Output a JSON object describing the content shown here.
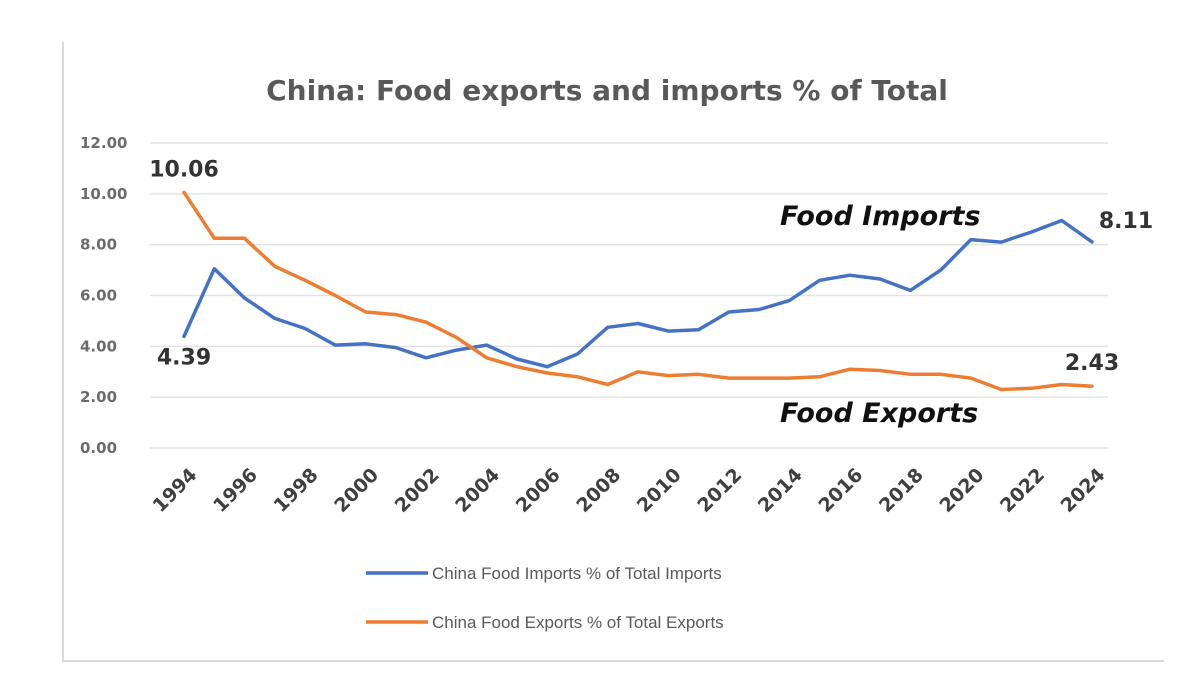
{
  "chart_data": {
    "type": "line",
    "title": "China: Food exports and imports % of Total",
    "xlabel": "",
    "ylabel": "",
    "ylim": [
      0,
      12
    ],
    "yticks": [
      "0.00",
      "2.00",
      "4.00",
      "6.00",
      "8.00",
      "10.00",
      "12.00"
    ],
    "x": [
      1994,
      1995,
      1996,
      1997,
      1998,
      1999,
      2000,
      2001,
      2002,
      2003,
      2004,
      2005,
      2006,
      2007,
      2008,
      2009,
      2010,
      2011,
      2012,
      2013,
      2014,
      2015,
      2016,
      2017,
      2018,
      2019,
      2020,
      2021,
      2022,
      2023,
      2024
    ],
    "xticks": [
      "1994",
      "1996",
      "1998",
      "2000",
      "2002",
      "2004",
      "2006",
      "2008",
      "2010",
      "2012",
      "2014",
      "2016",
      "2018",
      "2020",
      "2022",
      "2024"
    ],
    "grid": true,
    "legend_position": "bottom",
    "series": [
      {
        "name": "China Food Imports % of Total Imports",
        "color": "#4472c4",
        "values": [
          4.39,
          7.05,
          5.9,
          5.1,
          4.7,
          4.05,
          4.1,
          3.95,
          3.55,
          3.85,
          4.05,
          3.5,
          3.2,
          3.7,
          4.75,
          4.9,
          4.6,
          4.65,
          5.35,
          5.45,
          5.8,
          6.6,
          6.8,
          6.65,
          6.2,
          7.0,
          8.2,
          8.1,
          8.5,
          8.95,
          8.11
        ]
      },
      {
        "name": "China Food Exports % of Total Exports",
        "color": "#ed7d31",
        "values": [
          10.06,
          8.25,
          8.25,
          7.15,
          6.6,
          6.0,
          5.35,
          5.25,
          4.95,
          4.35,
          3.55,
          3.2,
          2.95,
          2.8,
          2.5,
          3.0,
          2.85,
          2.9,
          2.75,
          2.75,
          2.75,
          2.8,
          3.1,
          3.05,
          2.9,
          2.9,
          2.75,
          2.3,
          2.35,
          2.5,
          2.43
        ]
      }
    ],
    "data_labels": [
      {
        "text": "10.06",
        "series": 1,
        "index": 0,
        "anchor": "above"
      },
      {
        "text": "4.39",
        "series": 0,
        "index": 0,
        "anchor": "below"
      },
      {
        "text": "8.11",
        "series": 0,
        "index": 30,
        "anchor": "above-right"
      },
      {
        "text": "2.43",
        "series": 1,
        "index": 30,
        "anchor": "above"
      }
    ],
    "annotations": [
      {
        "text": "Food Imports",
        "near_series": 0
      },
      {
        "text": "Food Exports",
        "near_series": 1
      }
    ]
  }
}
